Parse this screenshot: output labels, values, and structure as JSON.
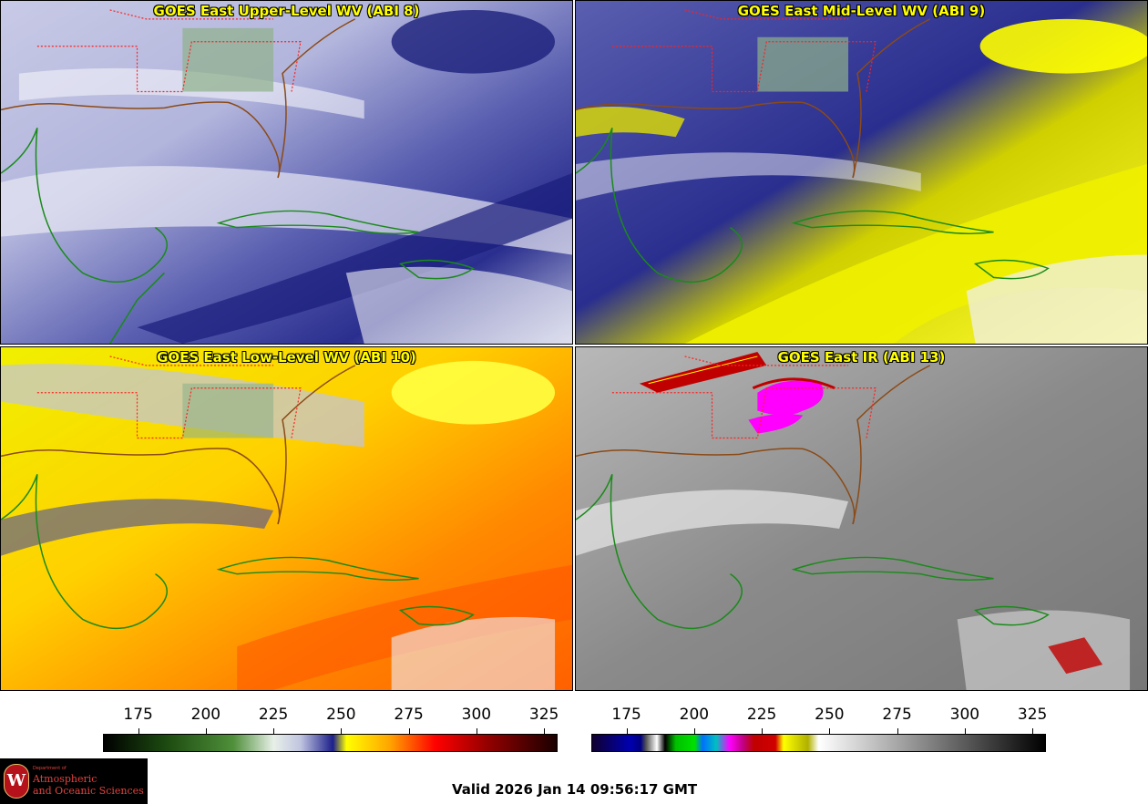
{
  "panels": [
    {
      "id": "p1",
      "title": "GOES East Upper-Level WV (ABI 8)"
    },
    {
      "id": "p2",
      "title": "GOES East Mid-Level WV (ABI 9)"
    },
    {
      "id": "p3",
      "title": "GOES East Low-Level WV (ABI 10)"
    },
    {
      "id": "p4",
      "title": "GOES East IR (ABI 13)"
    }
  ],
  "colorbar_wv": {
    "ticks": [
      "175",
      "200",
      "225",
      "250",
      "275",
      "300",
      "325"
    ],
    "min": 162,
    "max": 330,
    "stops": [
      {
        "v": 162,
        "c": "#000000"
      },
      {
        "v": 185,
        "c": "#1c4a10"
      },
      {
        "v": 210,
        "c": "#4f8f3a"
      },
      {
        "v": 225,
        "c": "#e8f0e8"
      },
      {
        "v": 235,
        "c": "#c0c4e0"
      },
      {
        "v": 247,
        "c": "#1c1f8a"
      },
      {
        "v": 252,
        "c": "#ffff00"
      },
      {
        "v": 268,
        "c": "#ffa500"
      },
      {
        "v": 285,
        "c": "#ff0000"
      },
      {
        "v": 305,
        "c": "#900000"
      },
      {
        "v": 330,
        "c": "#1a0000"
      }
    ]
  },
  "colorbar_ir": {
    "ticks": [
      "175",
      "200",
      "225",
      "250",
      "275",
      "300",
      "325"
    ],
    "min": 162,
    "max": 330,
    "stops": [
      {
        "v": 162,
        "c": "#100030"
      },
      {
        "v": 176,
        "c": "#0000b0"
      },
      {
        "v": 180,
        "c": "#000080"
      },
      {
        "v": 182,
        "c": "#555555"
      },
      {
        "v": 186,
        "c": "#ffffff"
      },
      {
        "v": 189,
        "c": "#000000"
      },
      {
        "v": 193,
        "c": "#00c000"
      },
      {
        "v": 200,
        "c": "#00e000"
      },
      {
        "v": 203,
        "c": "#0070ff"
      },
      {
        "v": 208,
        "c": "#00c0c0"
      },
      {
        "v": 213,
        "c": "#ff00ff"
      },
      {
        "v": 218,
        "c": "#c00080"
      },
      {
        "v": 222,
        "c": "#c00000"
      },
      {
        "v": 230,
        "c": "#d00000"
      },
      {
        "v": 233,
        "c": "#ffff00"
      },
      {
        "v": 242,
        "c": "#b0b000"
      },
      {
        "v": 246,
        "c": "#ffffff"
      },
      {
        "v": 330,
        "c": "#000000"
      }
    ]
  },
  "valid_time": "Valid 2026 Jan 14 09:56:17 GMT",
  "logo": {
    "dept": "Department of",
    "line1": "Atmospheric",
    "line2": "and Oceanic Sciences",
    "seal_letter": "W"
  },
  "colors": {
    "state_borders": "#ff2020",
    "coastlines_us": "#8b4a16",
    "coastlines_other": "#1a8a1a",
    "title_text": "#ffff00"
  }
}
